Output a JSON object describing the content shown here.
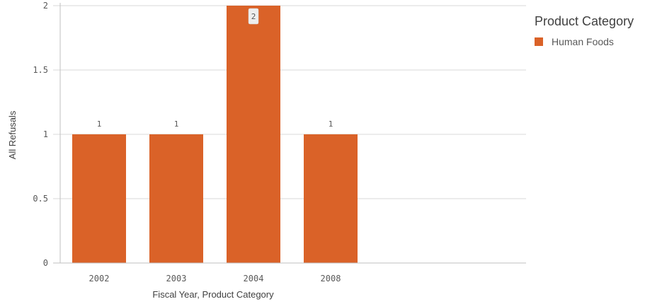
{
  "chart_data": {
    "type": "bar",
    "categories": [
      "2002",
      "2003",
      "2004",
      "2008"
    ],
    "series": [
      {
        "name": "Human Foods",
        "values": [
          1,
          1,
          2,
          1
        ]
      }
    ],
    "xlabel": "Fiscal Year, Product Category",
    "ylabel": "All Refusals",
    "ylim": [
      0,
      2
    ],
    "yticks": [
      "0",
      "0.5",
      "1",
      "1.5",
      "2"
    ],
    "data_labels": [
      "1",
      "1",
      "2",
      "1"
    ],
    "legend_title": "Product Category",
    "legend_position": "top-right",
    "grid": true,
    "colors": {
      "bar": "#DA6228",
      "grid": "#d9d9d9",
      "axis": "#bfbfbf"
    }
  }
}
